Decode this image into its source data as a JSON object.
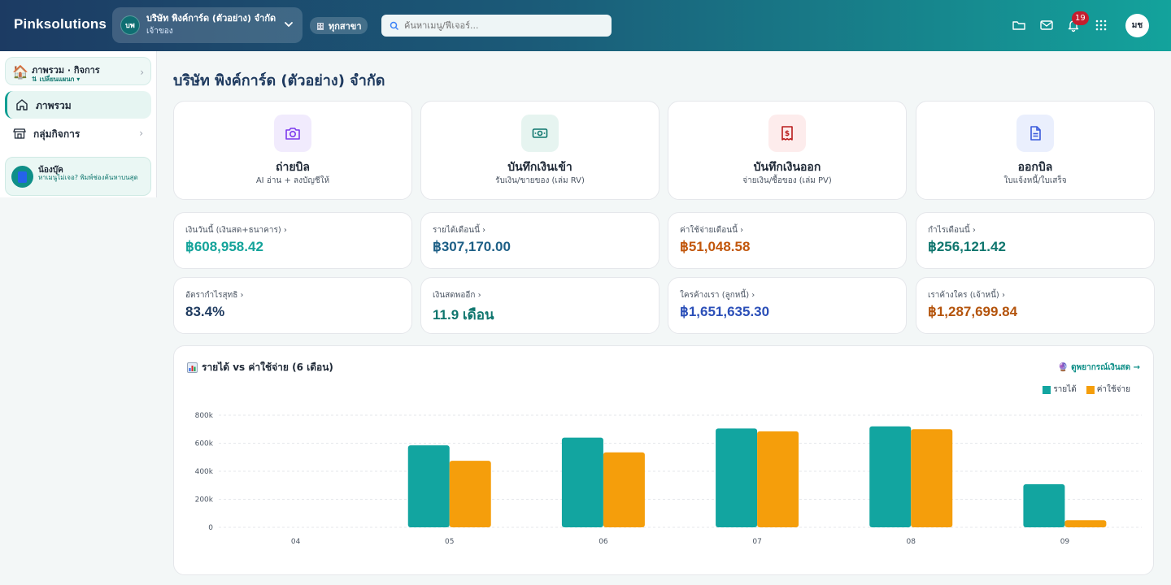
{
  "header": {
    "brand": "Pinksolutions",
    "company_initials": "บพ",
    "company_name": "บริษัท พิงค์การ์ด (ตัวอย่าง) จำกัด",
    "company_role": "เจ้าของ",
    "branch_label": "ทุกสาขา",
    "search_placeholder": "ค้นหาเมนู/ฟีเจอร์...",
    "notification_count": "19",
    "user_initials": "มช"
  },
  "sidebar": {
    "workspace_title": "ภาพรวม · กิจการ",
    "workspace_sub": "⇅ เปลี่ยนแผนก ▾",
    "items": [
      {
        "label": "ภาพรวม",
        "icon": "home-icon",
        "active": true
      },
      {
        "label": "กลุ่มกิจการ",
        "icon": "store-icon",
        "active": false
      }
    ],
    "helper_name": "น้องบุ๊ค",
    "helper_desc": "หาเมนูไม่เจอ? พิมพ์ช่องค้นหาบนสุด"
  },
  "page_title": "บริษัท พิงค์การ์ด (ตัวอย่าง) จำกัด",
  "quick_actions": [
    {
      "title": "ถ่ายบิล",
      "subtitle": "AI อ่าน + ลงบัญชีให้",
      "icon": "camera-icon",
      "color": "#7c3aed",
      "bg": "#f1ebfd"
    },
    {
      "title": "บันทึกเงินเข้า",
      "subtitle": "รับเงิน/ขายของ (เล่ม RV)",
      "icon": "cash-icon",
      "color": "#0f766e",
      "bg": "#e6f4f0"
    },
    {
      "title": "บันทึกเงินออก",
      "subtitle": "จ่ายเงิน/ซื้อของ (เล่ม PV)",
      "icon": "receipt-icon",
      "color": "#b91c1c",
      "bg": "#fdecec"
    },
    {
      "title": "ออกบิล",
      "subtitle": "ใบแจ้งหนี้/ใบเสร็จ",
      "icon": "document-icon",
      "color": "#3b5bdb",
      "bg": "#eaeffd"
    }
  ],
  "stats": [
    {
      "label": "เงินวันนี้ (เงินสด+ธนาคาร) ›",
      "value": "฿608,958.42",
      "color": "#14a39a"
    },
    {
      "label": "รายได้เดือนนี้ ›",
      "value": "฿307,170.00",
      "color": "#1d5f86"
    },
    {
      "label": "ค่าใช้จ่ายเดือนนี้ ›",
      "value": "฿51,048.58",
      "color": "#c2570c"
    },
    {
      "label": "กำไรเดือนนี้ ›",
      "value": "฿256,121.42",
      "color": "#0f766e"
    },
    {
      "label": "อัตรากำไรสุทธิ ›",
      "value": "83.4%",
      "color": "#1e3a5f"
    },
    {
      "label": "เงินสดพออีก ›",
      "value": "11.9 เดือน",
      "color": "#0f766e"
    },
    {
      "label": "ใครค้างเรา (ลูกหนี้) ›",
      "value": "฿1,651,635.30",
      "color": "#2b4fb8"
    },
    {
      "label": "เราค้างใคร (เจ้าหนี้) ›",
      "value": "฿1,287,699.84",
      "color": "#b4540c"
    }
  ],
  "chart": {
    "title": "รายได้ vs ค่าใช้จ่าย (6 เดือน)",
    "forecast_link": "🔮 ดูพยากรณ์เงินสด →"
  },
  "chart_data": {
    "type": "bar",
    "categories": [
      "04",
      "05",
      "06",
      "07",
      "08",
      "09"
    ],
    "series": [
      {
        "name": "รายได้",
        "color": "#12a5a0",
        "values": [
          0,
          585000,
          640000,
          705000,
          720000,
          307170
        ]
      },
      {
        "name": "ค่าใช้จ่าย",
        "color": "#f59e0b",
        "values": [
          0,
          475000,
          535000,
          685000,
          700000,
          51049
        ]
      }
    ],
    "yticks": [
      0,
      200000,
      400000,
      600000,
      800000
    ],
    "ytick_labels": [
      "0",
      "200k",
      "400k",
      "600k",
      "800k"
    ],
    "ylim": [
      0,
      800000
    ],
    "grid": true,
    "legend_position": "top-right"
  }
}
